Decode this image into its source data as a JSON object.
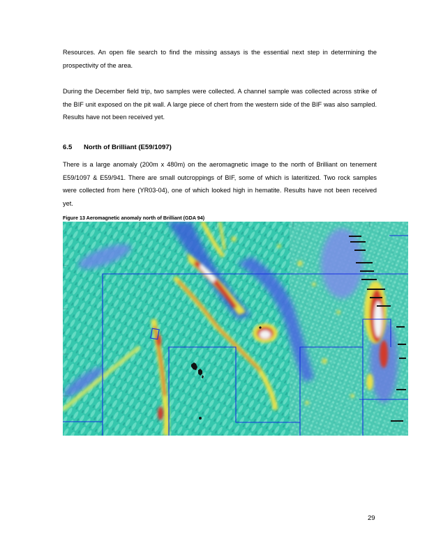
{
  "paragraphs": {
    "p1": "Resources.  An open file search to find the missing assays is the essential next step in determining the prospectivity of the area.",
    "p2": "During the December field trip, two samples were collected.  A channel sample was collected across strike of the BIF unit exposed on the pit wall.  A large piece of chert from the western side of the BIF was also sampled.  Results have not been received yet.",
    "p3": "There is a large anomaly (200m x 480m) on the aeromagnetic image to the north of Brilliant on tenement E59/1097 & E59/941.  There are small outcroppings of BIF, some of which is lateritized.  Two rock samples were collected from here (YR03-04), one of which looked high in hematite.  Results have not been received yet."
  },
  "section": {
    "number": "6.5",
    "title": "North of Brilliant (E59/1097)"
  },
  "figure": {
    "caption": "Figure 13 Aeromagnetic anomaly north of Brilliant (GDA 94)",
    "palette": {
      "background": "#2fbfa6",
      "low": "#3a5fd8",
      "mid": "#e8e04a",
      "high": "#d23a2a",
      "peak": "#f2f2f2",
      "boundary": "#1830e0"
    }
  },
  "page_number": "29"
}
